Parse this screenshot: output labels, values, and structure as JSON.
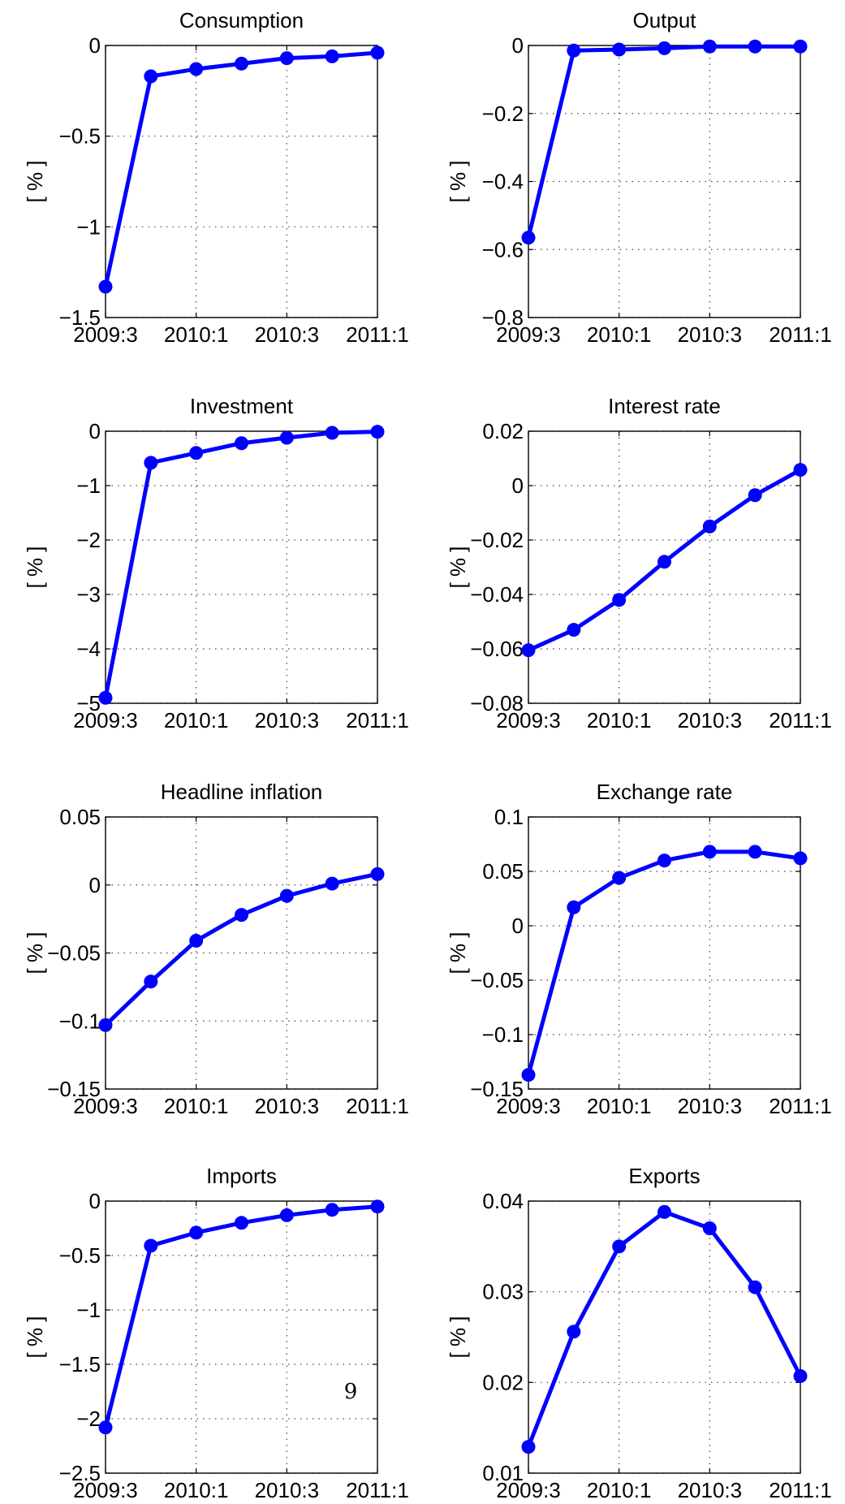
{
  "chart_data": [
    {
      "type": "line",
      "title": "Consumption",
      "ylabel": "[ % ]",
      "color": "#0000ff",
      "grid": true,
      "categories": [
        "2009:3",
        null,
        "2010:1",
        null,
        "2010:3",
        null,
        "2011:1"
      ],
      "values": [
        -1.33,
        -0.17,
        -0.13,
        -0.1,
        -0.07,
        -0.06,
        -0.04
      ],
      "ylim": [
        -1.5,
        0
      ],
      "yticks": [
        {
          "value": -1.5,
          "label": "−1.5"
        },
        {
          "value": -1,
          "label": "−1"
        },
        {
          "value": -0.5,
          "label": "−0.5"
        },
        0
      ]
    },
    {
      "type": "line",
      "title": "Output",
      "ylabel": "[ % ]",
      "color": "#0000ff",
      "grid": true,
      "categories": [
        "2009:3",
        null,
        "2010:1",
        null,
        "2010:3",
        null,
        "2011:1"
      ],
      "values": [
        -0.565,
        -0.015,
        -0.012,
        -0.008,
        -0.003,
        -0.003,
        -0.003
      ],
      "ylim": [
        -0.8,
        0
      ],
      "yticks": [
        {
          "value": -0.8,
          "label": "−0.8"
        },
        {
          "value": -0.6,
          "label": "−0.6"
        },
        {
          "value": -0.4,
          "label": "−0.4"
        },
        {
          "value": -0.2,
          "label": "−0.2"
        },
        0
      ]
    },
    {
      "type": "line",
      "title": "Investment",
      "ylabel": "[ % ]",
      "color": "#0000ff",
      "grid": true,
      "categories": [
        "2009:3",
        null,
        "2010:1",
        null,
        "2010:3",
        null,
        "2011:1"
      ],
      "values": [
        -4.9,
        -0.58,
        -0.4,
        -0.22,
        -0.12,
        -0.03,
        -0.01
      ],
      "ylim": [
        -5,
        0
      ],
      "yticks": [
        {
          "value": -5,
          "label": "−5"
        },
        {
          "value": -4,
          "label": "−4"
        },
        {
          "value": -3,
          "label": "−3"
        },
        {
          "value": -2,
          "label": "−2"
        },
        {
          "value": -1,
          "label": "−1"
        },
        0
      ]
    },
    {
      "type": "line",
      "title": "Interest rate",
      "ylabel": "[ % ]",
      "color": "#0000ff",
      "grid": true,
      "categories": [
        "2009:3",
        null,
        "2010:1",
        null,
        "2010:3",
        null,
        "2011:1"
      ],
      "values": [
        -0.0605,
        -0.053,
        -0.042,
        -0.028,
        -0.015,
        -0.0035,
        0.0058
      ],
      "ylim": [
        -0.08,
        0.02
      ],
      "yticks": [
        {
          "value": -0.08,
          "label": "−0.08"
        },
        {
          "value": -0.06,
          "label": "−0.06"
        },
        {
          "value": -0.04,
          "label": "−0.04"
        },
        {
          "value": -0.02,
          "label": "−0.02"
        },
        0,
        0.02
      ]
    },
    {
      "type": "line",
      "title": "Headline inflation",
      "ylabel": "[ % ]",
      "color": "#0000ff",
      "grid": true,
      "categories": [
        "2009:3",
        null,
        "2010:1",
        null,
        "2010:3",
        null,
        "2011:1"
      ],
      "values": [
        -0.103,
        -0.071,
        -0.041,
        -0.022,
        -0.008,
        0.001,
        0.008
      ],
      "ylim": [
        -0.15,
        0.05
      ],
      "yticks": [
        {
          "value": -0.15,
          "label": "−0.15"
        },
        {
          "value": -0.1,
          "label": "−0.1"
        },
        {
          "value": -0.05,
          "label": "−0.05"
        },
        0,
        0.05
      ]
    },
    {
      "type": "line",
      "title": "Exchange rate",
      "ylabel": "[ % ]",
      "color": "#0000ff",
      "grid": true,
      "categories": [
        "2009:3",
        null,
        "2010:1",
        null,
        "2010:3",
        null,
        "2011:1"
      ],
      "values": [
        -0.137,
        0.017,
        0.044,
        0.06,
        0.068,
        0.068,
        0.062
      ],
      "ylim": [
        -0.15,
        0.1
      ],
      "yticks": [
        {
          "value": -0.15,
          "label": "−0.15"
        },
        {
          "value": -0.1,
          "label": "−0.1"
        },
        {
          "value": -0.05,
          "label": "−0.05"
        },
        0,
        0.05,
        0.1
      ]
    },
    {
      "type": "line",
      "title": "Imports",
      "ylabel": "[ % ]",
      "color": "#0000ff",
      "grid": true,
      "categories": [
        "2009:3",
        null,
        "2010:1",
        null,
        "2010:3",
        null,
        "2011:1"
      ],
      "values": [
        -2.08,
        -0.41,
        -0.29,
        -0.2,
        -0.13,
        -0.08,
        -0.05
      ],
      "ylim": [
        -2.5,
        0
      ],
      "yticks": [
        {
          "value": -2.5,
          "label": "−2.5"
        },
        {
          "value": -2,
          "label": "−2"
        },
        {
          "value": -1.5,
          "label": "−1.5"
        },
        {
          "value": -1,
          "label": "−1"
        },
        {
          "value": -0.5,
          "label": "−0.5"
        },
        0
      ]
    },
    {
      "type": "line",
      "title": "Exports",
      "ylabel": "[ % ]",
      "color": "#0000ff",
      "grid": true,
      "categories": [
        "2009:3",
        null,
        "2010:1",
        null,
        "2010:3",
        null,
        "2011:1"
      ],
      "values": [
        0.0129,
        0.0256,
        0.035,
        0.0388,
        0.037,
        0.0305,
        0.0207
      ],
      "ylim": [
        0.01,
        0.04
      ],
      "yticks": [
        0.01,
        0.02,
        0.03,
        0.04
      ]
    }
  ],
  "page_number": "9"
}
